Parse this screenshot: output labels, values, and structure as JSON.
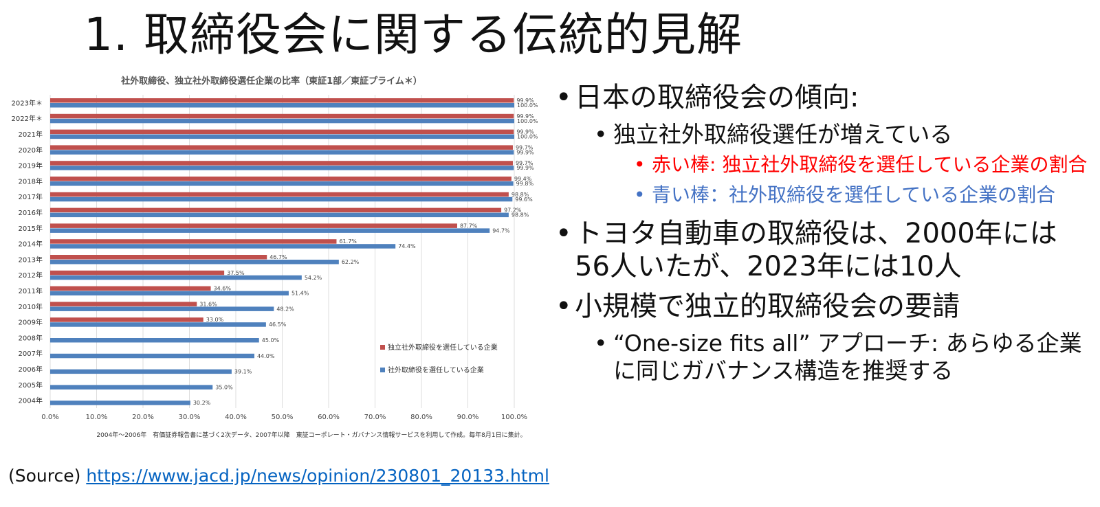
{
  "title": "1. 取締役会に関する伝統的見解",
  "chart_data": {
    "type": "bar",
    "orientation": "horizontal",
    "title": "社外取締役、独立社外取締役選任企業の比率（東証1部／東証プライム＊）",
    "categories": [
      "2023年＊",
      "2022年＊",
      "2021年",
      "2020年",
      "2019年",
      "2018年",
      "2017年",
      "2016年",
      "2015年",
      "2014年",
      "2013年",
      "2012年",
      "2011年",
      "2010年",
      "2009年",
      "2008年",
      "2007年",
      "2006年",
      "2005年",
      "2004年"
    ],
    "series": [
      {
        "name": "独立社外取締役を選任している企業",
        "color": "#c0504d",
        "values": [
          99.9,
          99.9,
          99.9,
          99.7,
          99.7,
          99.4,
          98.8,
          97.2,
          87.7,
          61.7,
          46.7,
          37.5,
          34.6,
          31.6,
          33.0,
          null,
          null,
          null,
          null,
          null
        ],
        "labels": [
          "99.9%",
          "99.9%",
          "99.9%",
          "99.7%",
          "99.7%",
          "99.4%",
          "98.8%",
          "97.2%",
          "87.7%",
          "61.7%",
          "46.7%",
          "37.5%",
          "34.6%",
          "31.6%",
          "33.0%",
          "",
          "",
          "",
          "",
          ""
        ]
      },
      {
        "name": "社外取締役を選任している企業",
        "color": "#4f81bd",
        "values": [
          100.0,
          100.0,
          100.0,
          99.9,
          99.9,
          99.8,
          99.6,
          98.8,
          94.7,
          74.4,
          62.2,
          54.2,
          51.4,
          48.2,
          46.5,
          45.0,
          44.0,
          39.1,
          35.0,
          30.2
        ],
        "labels": [
          "100.0%",
          "100.0%",
          "100.0%",
          "99.9%",
          "99.9%",
          "99.8%",
          "99.6%",
          "98.8%",
          "94.7%",
          "74.4%",
          "62.2%",
          "54.2%",
          "51.4%",
          "48.2%",
          "46.5%",
          "45.0%",
          "44.0%",
          "39.1%",
          "35.0%",
          "30.2%"
        ]
      }
    ],
    "xlim": [
      0,
      100
    ],
    "xticks": [
      "0.0%",
      "10.0%",
      "20.0%",
      "30.0%",
      "40.0%",
      "50.0%",
      "60.0%",
      "70.0%",
      "80.0%",
      "90.0%",
      "100.0%"
    ],
    "grid": true,
    "legend_position": "right-lower",
    "note": "2004年～2006年　有価証券報告書に基づく2次データ、2007年以降　東証コーポレート・ガバナンス情報サービスを利用して作成。毎年8月1日に集計。"
  },
  "bullets": {
    "b1": "日本の取締役会の傾向:",
    "b1_1": "独立社外取締役選任が増えている",
    "b1_1_1": "赤い棒: 独立社外取締役を選任している企業の割合",
    "b1_1_2": "青い棒：社外取締役を選任している企業の割合",
    "b2": "トヨタ自動車の取締役は、2000年には56人いたが、2023年には10人",
    "b3": "小規模で独立的取締役会の要請",
    "b3_1": "“One-size fits all” アプローチ: あらゆる企業に同じガバナンス構造を推奨する"
  },
  "source": {
    "prefix": "(Source) ",
    "link": "https://www.jacd.jp/news/opinion/230801_20133.html"
  }
}
